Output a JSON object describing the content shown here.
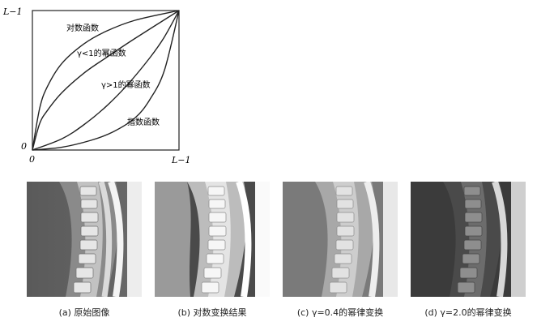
{
  "chart_data": {
    "type": "line",
    "title": "",
    "xlabel": "",
    "ylabel": "",
    "x_ticks": [
      "0",
      "L−1"
    ],
    "y_ticks": [
      "0",
      "L−1"
    ],
    "series": [
      {
        "name": "对数函数",
        "x": [
          0,
          0.05,
          0.1,
          0.2,
          0.35,
          0.5,
          0.7,
          1.0
        ],
        "y": [
          0,
          0.3,
          0.45,
          0.62,
          0.76,
          0.85,
          0.93,
          1.0
        ]
      },
      {
        "name": "γ<1的幂函数",
        "x": [
          0,
          0.05,
          0.1,
          0.2,
          0.35,
          0.5,
          0.7,
          1.0
        ],
        "y": [
          0,
          0.19,
          0.28,
          0.41,
          0.55,
          0.66,
          0.8,
          1.0
        ]
      },
      {
        "name": "γ>1的幂函数",
        "x": [
          0,
          0.2,
          0.35,
          0.5,
          0.65,
          0.8,
          0.9,
          1.0
        ],
        "y": [
          0,
          0.08,
          0.18,
          0.31,
          0.47,
          0.66,
          0.81,
          1.0
        ]
      },
      {
        "name": "指数函数",
        "x": [
          0,
          0.2,
          0.4,
          0.55,
          0.7,
          0.8,
          0.9,
          1.0
        ],
        "y": [
          0,
          0.02,
          0.07,
          0.13,
          0.23,
          0.36,
          0.57,
          1.0
        ]
      }
    ]
  },
  "figures": [
    {
      "caption": "(a) 原始图像",
      "tone": "original"
    },
    {
      "caption": "(b) 对数变换结果",
      "tone": "log"
    },
    {
      "caption": "(c) γ=0.4的幂律变换",
      "tone": "gamma04"
    },
    {
      "caption": "(d) γ=2.0的幂律变换",
      "tone": "gamma20"
    }
  ]
}
